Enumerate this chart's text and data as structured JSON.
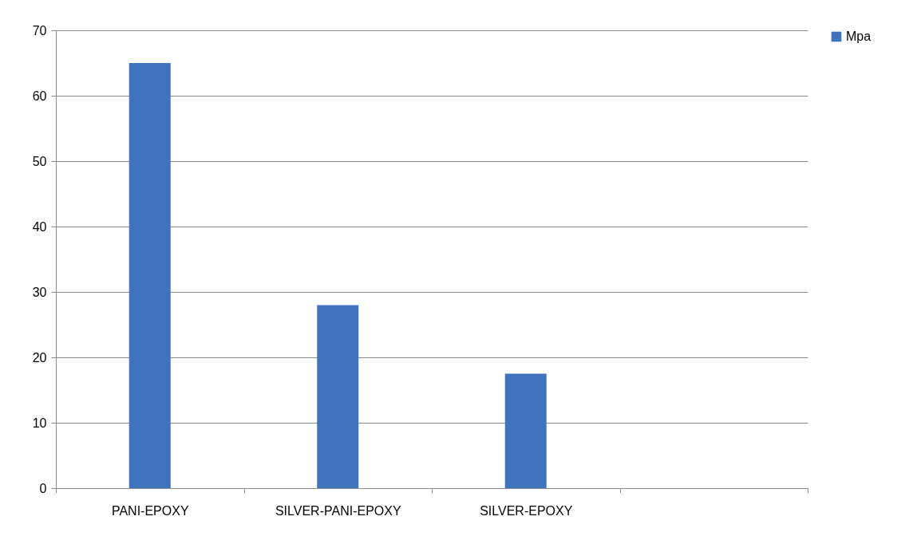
{
  "chart_data": {
    "type": "bar",
    "categories": [
      "PANI-EPOXY",
      "SILVER-PANI-EPOXY",
      "SILVER-EPOXY",
      null
    ],
    "series": [
      {
        "name": "Mpa",
        "color": "#3f73be",
        "values": [
          65,
          28,
          17.5,
          null
        ]
      }
    ],
    "ylim": [
      0,
      70
    ],
    "yticks": [
      0,
      10,
      20,
      30,
      40,
      50,
      60,
      70
    ],
    "grid": "y",
    "legend": "right"
  }
}
